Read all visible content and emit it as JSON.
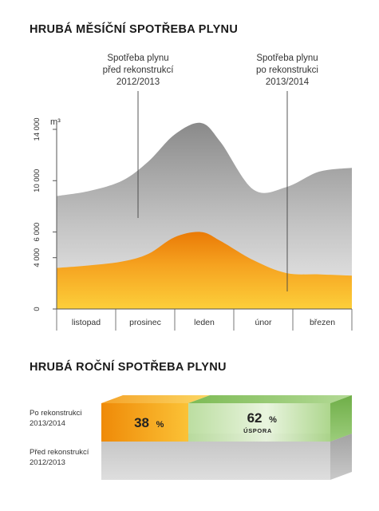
{
  "colors": {
    "before": "#a3a3a3",
    "after": "#f0900e",
    "savings": "#8cc567",
    "axis": "#555555",
    "text": "#333333"
  },
  "chart_data": [
    {
      "type": "area",
      "title": "HRUBÁ MĚSÍČNÍ SPOTŘEBA PLYNU",
      "ylabel": "m³",
      "ylim": [
        0,
        14000
      ],
      "yticks": [
        {
          "value": 0,
          "label": "0"
        },
        {
          "value": 4000,
          "label": "4 000"
        },
        {
          "value": 6000,
          "label": "6 000"
        },
        {
          "value": 10000,
          "label": "10 000"
        },
        {
          "value": 14000,
          "label": "14 000"
        }
      ],
      "categories": [
        "listopad",
        "prosinec",
        "leden",
        "únor",
        "březen"
      ],
      "series": [
        {
          "name": "Spotřeba plynu před rekonstrukcí 2012/2013",
          "label_lines": [
            "Spotřeba plynu",
            "před rekonstrukcí",
            "2012/2013"
          ],
          "x": [
            0,
            0.5,
            1.0,
            1.4,
            1.8,
            2.2,
            2.5,
            3.0,
            3.5,
            4.0,
            4.5
          ],
          "values": [
            8800,
            9200,
            10000,
            11500,
            13600,
            14500,
            13000,
            9300,
            9500,
            10700,
            11000
          ]
        },
        {
          "name": "Spotřeba plynu po rekonstrukci 2013/2014",
          "label_lines": [
            "Spotřeba plynu",
            "po rekonstrukci",
            "2013/2014"
          ],
          "x": [
            0,
            0.5,
            1.0,
            1.4,
            1.8,
            2.2,
            2.5,
            3.0,
            3.5,
            4.0,
            4.5
          ],
          "values": [
            3200,
            3400,
            3700,
            4300,
            5600,
            6000,
            5300,
            3800,
            2800,
            2700,
            2600
          ]
        }
      ]
    },
    {
      "type": "bar",
      "title": "HRUBÁ ROČNÍ SPOTŘEBA PLYNU",
      "categories": [
        "Po rekonstrukci 2013/2014",
        "Před rekonstrukcí 2012/2013"
      ],
      "rows": [
        {
          "label_lines": [
            "Po rekonstrukci",
            "2013/2014"
          ],
          "consumption_pct": 38,
          "savings_pct": 62
        },
        {
          "label_lines": [
            "Před rekonstrukcí",
            "2012/2013"
          ],
          "consumption_pct": 100
        }
      ],
      "labels": {
        "consumption": "38",
        "savings": "62",
        "unit": "%",
        "savings_caption": "ÚSPORA"
      }
    }
  ]
}
